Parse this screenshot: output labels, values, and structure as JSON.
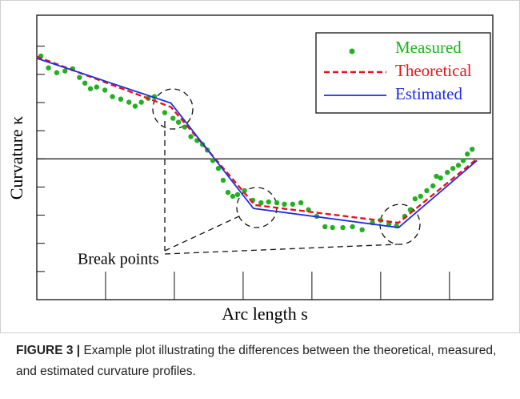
{
  "chart_data": {
    "type": "line",
    "x_label": "Arc length s",
    "y_label": "Curvature κ",
    "annotation": "Break points",
    "xlim": [
      0,
      6.63
    ],
    "xticks": [
      1,
      2,
      3,
      4,
      5,
      6
    ],
    "ylim": [
      -5,
      5.1
    ],
    "yticks": [
      -4,
      -3,
      -2,
      -1,
      0,
      1,
      2,
      3,
      4
    ],
    "zero_line": true,
    "legend": "upper right",
    "series": [
      {
        "name": "Measured",
        "color": "#22b022",
        "style": "dots",
        "x": [
          0.06,
          0.17,
          0.29,
          0.41,
          0.52,
          0.62,
          0.7,
          0.78,
          0.87,
          0.99,
          1.1,
          1.22,
          1.34,
          1.43,
          1.52,
          1.62,
          1.71,
          1.86,
          1.98,
          2.06,
          2.15,
          2.24,
          2.33,
          2.41,
          2.48,
          2.56,
          2.64,
          2.71,
          2.78,
          2.85,
          2.92,
          3.02,
          3.14,
          3.26,
          3.37,
          3.49,
          3.6,
          3.72,
          3.84,
          3.95,
          4.07,
          4.19,
          4.3,
          4.45,
          4.59,
          4.73,
          4.88,
          5.0,
          5.12,
          5.23,
          5.35,
          5.43,
          5.5,
          5.58,
          5.67,
          5.76,
          5.81,
          5.87,
          5.97,
          6.05,
          6.13,
          6.2,
          6.26,
          6.33
        ],
        "values": [
          3.65,
          3.23,
          3.06,
          3.12,
          3.2,
          2.89,
          2.69,
          2.49,
          2.55,
          2.44,
          2.21,
          2.12,
          2.01,
          1.87,
          2.01,
          2.15,
          2.21,
          1.64,
          1.44,
          1.3,
          1.13,
          0.79,
          0.65,
          0.51,
          0.31,
          -0.06,
          -0.34,
          -0.76,
          -1.19,
          -1.33,
          -1.27,
          -1.13,
          -1.47,
          -1.56,
          -1.53,
          -1.56,
          -1.61,
          -1.61,
          -1.56,
          -1.81,
          -2.04,
          -2.41,
          -2.44,
          -2.44,
          -2.41,
          -2.52,
          -2.27,
          -2.18,
          -2.32,
          -2.38,
          -2.04,
          -1.81,
          -1.42,
          -1.33,
          -1.13,
          -0.96,
          -0.62,
          -0.68,
          -0.48,
          -0.34,
          -0.23,
          -0.06,
          0.17,
          0.34
        ]
      },
      {
        "name": "Theoretical",
        "color": "#e8141c",
        "style": "dashed",
        "x": [
          0,
          1.95,
          3.17,
          5.26,
          6.4
        ],
        "values": [
          3.63,
          1.84,
          -1.64,
          -2.27,
          0
        ]
      },
      {
        "name": "Estimated",
        "color": "#1f2ee0",
        "style": "solid",
        "x": [
          0,
          1.95,
          3.15,
          5.26,
          6.4
        ],
        "values": [
          3.57,
          1.98,
          -1.76,
          -2.44,
          -0.06
        ]
      }
    ]
  },
  "caption": {
    "label": "FIGURE 3 |",
    "text": "Example plot illustrating the differences between the theoretical, measured, and estimated curvature profiles."
  }
}
